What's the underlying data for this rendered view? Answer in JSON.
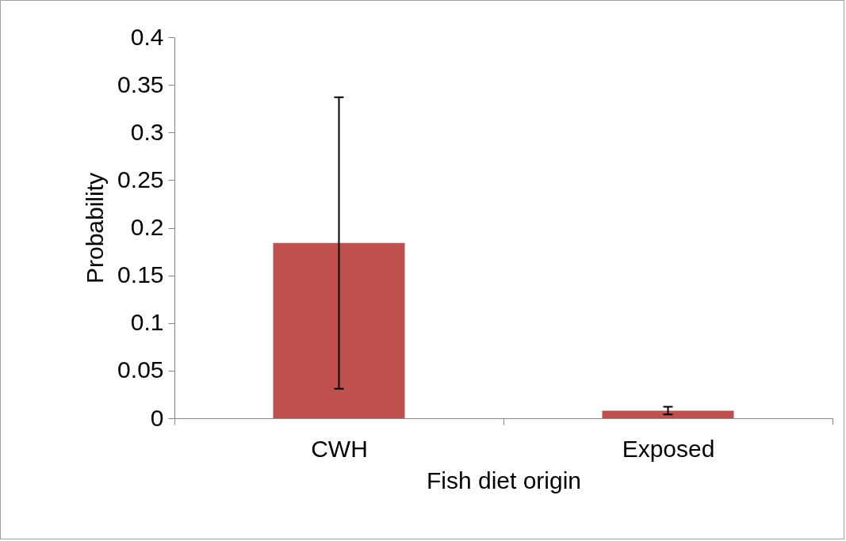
{
  "chart_data": {
    "type": "bar",
    "xlabel": "Fish diet origin",
    "ylabel": "Probability",
    "categories": [
      "CWH",
      "Exposed"
    ],
    "values": [
      0.184,
      0.008
    ],
    "errors": [
      [
        0.031,
        0.337
      ],
      [
        0.004,
        0.012
      ]
    ],
    "color": "#c0504d",
    "ylim": [
      0,
      0.4
    ],
    "yticks": [
      0,
      0.05,
      0.1,
      0.15,
      0.2,
      0.25,
      0.3,
      0.35,
      0.4
    ],
    "grid": false
  }
}
